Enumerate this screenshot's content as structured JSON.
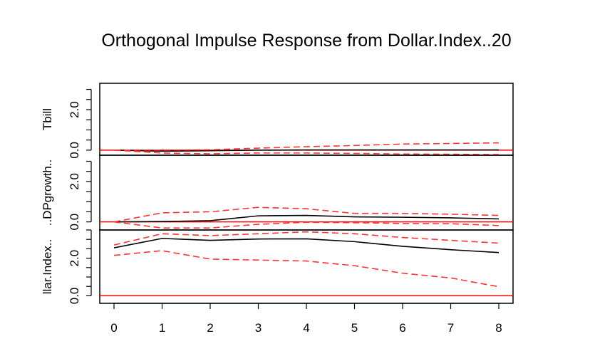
{
  "chart_data": {
    "type": "line",
    "title": "Orthogonal Impulse Response from Dollar.Index..20",
    "x": [
      0,
      1,
      2,
      3,
      4,
      5,
      6,
      7,
      8
    ],
    "x_tick_labels": [
      "0",
      "1",
      "2",
      "3",
      "4",
      "5",
      "6",
      "7",
      "8"
    ],
    "panels": [
      {
        "ylabel": "Tbill",
        "ylim": [
          -0.25,
          3.3
        ],
        "y_tick_labels": [
          "0.0",
          "2.0"
        ],
        "response": [
          0.0,
          -0.05,
          -0.03,
          0.0,
          0.01,
          0.01,
          0.01,
          0.01,
          0.01
        ],
        "upper": [
          0.0,
          0.0,
          0.02,
          0.1,
          0.17,
          0.23,
          0.3,
          0.33,
          0.36
        ],
        "lower": [
          0.0,
          -0.14,
          -0.18,
          -0.14,
          -0.14,
          -0.16,
          -0.19,
          -0.2,
          -0.22
        ],
        "zero_line": 0.0
      },
      {
        "ylabel": "..DPgrowth..",
        "ylim": [
          -0.4,
          3.3
        ],
        "y_tick_labels": [
          "0.0",
          "2.0"
        ],
        "response": [
          0.0,
          0.02,
          0.06,
          0.3,
          0.32,
          0.25,
          0.23,
          0.2,
          0.15
        ],
        "upper": [
          0.0,
          0.45,
          0.5,
          0.72,
          0.65,
          0.42,
          0.42,
          0.38,
          0.32
        ],
        "lower": [
          0.0,
          -0.3,
          -0.3,
          -0.12,
          -0.02,
          -0.04,
          -0.08,
          -0.09,
          -0.18
        ],
        "zero_line": 0.0
      },
      {
        "ylabel": "llar.Index..",
        "ylim": [
          -0.4,
          3.5
        ],
        "y_tick_labels": [
          "0.0",
          "2.0"
        ],
        "response": [
          2.55,
          3.05,
          2.95,
          3.02,
          3.03,
          2.88,
          2.63,
          2.45,
          2.3
        ],
        "upper": [
          2.7,
          3.3,
          3.2,
          3.3,
          3.4,
          3.3,
          3.1,
          2.95,
          2.8
        ],
        "lower": [
          2.15,
          2.4,
          1.95,
          1.9,
          1.85,
          1.6,
          1.2,
          0.95,
          0.48
        ],
        "zero_line": 0.0
      }
    ],
    "series": [
      {
        "values": "response",
        "color": "#000000",
        "style": "solid"
      },
      {
        "values": "upper",
        "color": "#ff3333",
        "style": "dashed"
      },
      {
        "values": "lower",
        "color": "#ff3333",
        "style": "dashed"
      }
    ],
    "zero_line_color": "#ff0000",
    "grid": false,
    "legend": "none"
  }
}
